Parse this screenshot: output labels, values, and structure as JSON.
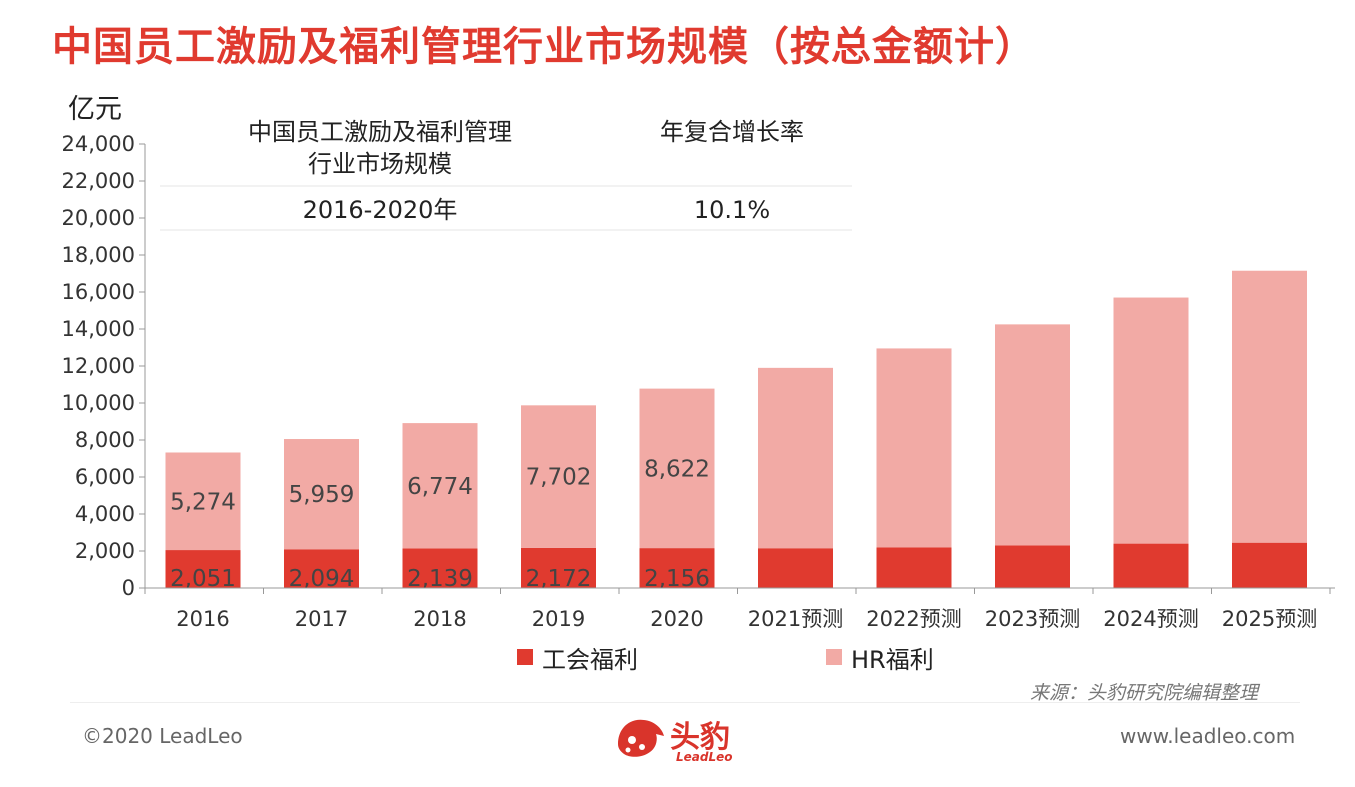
{
  "title": "中国员工激励及福利管理行业市场规模（按总金额计）",
  "unit_label": "亿元",
  "info_table": {
    "col1_header_line1": "中国员工激励及福利管理",
    "col1_header_line2": "行业市场规模",
    "col2_header": "年复合增长率",
    "period": "2016-2020年",
    "cagr": "10.1%"
  },
  "source": "来源：头豹研究院编辑整理",
  "footer": {
    "copyright": "©2020 LeadLeo",
    "website": "www.leadleo.com",
    "logo_cn": "头豹",
    "logo_en": "LeadLeo"
  },
  "colors": {
    "title": "#e03a2f",
    "union_welfare": "#e03a2f",
    "hr_welfare": "#f2aaa5"
  },
  "chart_data": {
    "type": "bar",
    "stacked": true,
    "categories": [
      "2016",
      "2017",
      "2018",
      "2019",
      "2020",
      "2021预测",
      "2022预测",
      "2023预测",
      "2024预测",
      "2025预测"
    ],
    "series": [
      {
        "name": "工会福利",
        "values": [
          2051,
          2094,
          2139,
          2172,
          2156,
          2150,
          2200,
          2300,
          2400,
          2450
        ],
        "labels": [
          "2,051",
          "2,094",
          "2,139",
          "2,172",
          "2,156",
          "",
          "",
          "",
          "",
          ""
        ]
      },
      {
        "name": "HR福利",
        "values": [
          5274,
          5959,
          6774,
          7702,
          8622,
          9750,
          10750,
          11950,
          13300,
          14700
        ],
        "labels": [
          "5,274",
          "5,959",
          "6,774",
          "7,702",
          "8,622",
          "",
          "",
          "",
          "",
          ""
        ]
      }
    ],
    "ylim": [
      0,
      24000
    ],
    "yticks": [
      0,
      2000,
      4000,
      6000,
      8000,
      10000,
      12000,
      14000,
      16000,
      18000,
      20000,
      22000,
      24000
    ],
    "ytick_labels": [
      "0",
      "2,000",
      "4,000",
      "6,000",
      "8,000",
      "10,000",
      "12,000",
      "14,000",
      "16,000",
      "18,000",
      "20,000",
      "22,000",
      "24,000"
    ],
    "ylabel": "亿元",
    "legend_position": "bottom"
  }
}
